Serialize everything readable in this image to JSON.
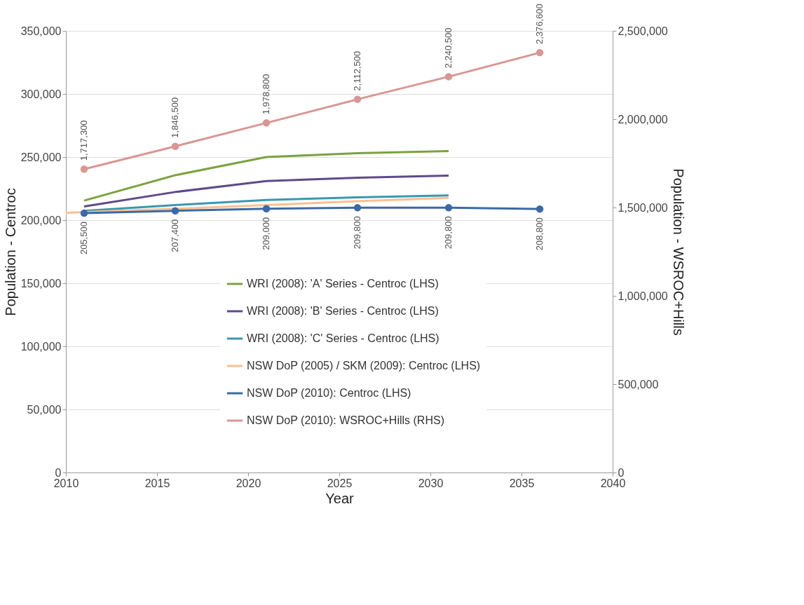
{
  "chart_data": {
    "type": "line",
    "xlabel": "Year",
    "ylabel": "Population - Centroc",
    "y2label": "Population - WSROC+Hills",
    "xlim": [
      2010,
      2040
    ],
    "xticks": [
      2010,
      2015,
      2020,
      2025,
      2030,
      2035,
      2040
    ],
    "ylim": [
      0,
      350000
    ],
    "yticks": [
      0,
      {
        "value": 50000,
        "label": "50,000"
      },
      {
        "value": 100000,
        "label": "100,000"
      },
      {
        "value": 150000,
        "label": "150,000"
      },
      {
        "value": 200000,
        "label": "200,000"
      },
      {
        "value": 250000,
        "label": "250,000"
      },
      {
        "value": 300000,
        "label": "300,000"
      },
      {
        "value": 350000,
        "label": "350,000"
      }
    ],
    "y2lim": [
      0,
      2500000
    ],
    "y2ticks": [
      0,
      {
        "value": 500000,
        "label": "500,000"
      },
      {
        "value": 1000000,
        "label": "1,000,000"
      },
      {
        "value": 1500000,
        "label": "1,500,000"
      },
      {
        "value": 2000000,
        "label": "2,000,000"
      },
      {
        "value": 2500000,
        "label": "2,500,000"
      }
    ],
    "grid": "y",
    "legend": "bottom right",
    "line_style": "solid",
    "series": [
      {
        "name": "WRI (2008): 'A' Series - Centroc (LHS)",
        "color": "#7ba23f",
        "marker": "none",
        "x": [
          2011,
          2016,
          2021,
          2026,
          2031
        ],
        "values": [
          215500,
          235600,
          250000,
          253000,
          254700
        ]
      },
      {
        "name": "WRI (2008): 'B' Series - Centroc (LHS)",
        "color": "#5f4a8b",
        "marker": "none",
        "x": [
          2011,
          2016,
          2021,
          2026,
          2031
        ],
        "values": [
          210800,
          222300,
          231000,
          233600,
          235300
        ]
      },
      {
        "name": "WRI (2008): 'C' Series - Centroc (LHS)",
        "color": "#3a98b0",
        "marker": "none",
        "x": [
          2011,
          2016,
          2021,
          2026,
          2031
        ],
        "values": [
          207300,
          212000,
          216000,
          218000,
          219600
        ]
      },
      {
        "name": "NSW DoP (2005) / SKM (2009): Centroc (LHS)",
        "color": "#fac090",
        "marker": "none",
        "x": [
          2010,
          2016,
          2021,
          2026,
          2031
        ],
        "values": [
          205800,
          209000,
          212000,
          215000,
          217600
        ]
      },
      {
        "name": "NSW DoP (2010): Centroc (LHS)",
        "color": "#3b6aa5",
        "marker": "circle",
        "data_labels": true,
        "x": [
          2011,
          2016,
          2021,
          2026,
          2031,
          2036
        ],
        "values": [
          205500,
          207400,
          209000,
          209800,
          209800,
          208800
        ],
        "value_labels": [
          "205,500",
          "207,400",
          "209,000",
          "209,800",
          "209,800",
          "208,800"
        ]
      },
      {
        "name": "NSW DoP (2010): WSROC+Hills (RHS)",
        "color": "#d99694",
        "marker": "circle",
        "axis": "y2",
        "data_labels": true,
        "x": [
          2011,
          2016,
          2021,
          2026,
          2031,
          2036
        ],
        "values": [
          1717300,
          1846500,
          1978800,
          2112500,
          2240500,
          2376600
        ],
        "value_labels": [
          "1,717,300",
          "1,846,500",
          "1,978,800",
          "2,112,500",
          "2,240,500",
          "2,376,600"
        ]
      }
    ]
  }
}
